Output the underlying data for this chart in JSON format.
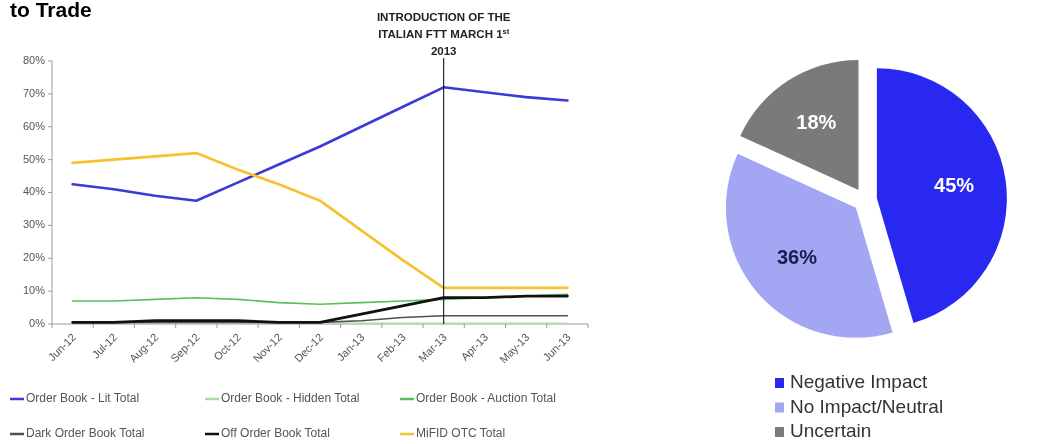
{
  "chart_data": [
    {
      "type": "line",
      "title": "to Trade",
      "categories": [
        "Jun-12",
        "Jul-12",
        "Aug-12",
        "Sep-12",
        "Oct-12",
        "Nov-12",
        "Dec-12",
        "Jan-13",
        "Feb-13",
        "Mar-13",
        "Apr-13",
        "May-13",
        "Jun-13"
      ],
      "ylim": [
        0,
        80
      ],
      "yticks": [
        {
          "value": 0,
          "label": "0%"
        },
        {
          "value": 10,
          "label": "10%"
        },
        {
          "value": 20,
          "label": "20%"
        },
        {
          "value": 30,
          "label": "30%"
        },
        {
          "value": 40,
          "label": "40%"
        },
        {
          "value": 50,
          "label": "50%"
        },
        {
          "value": 60,
          "label": "60%"
        },
        {
          "value": 70,
          "label": "70%"
        },
        {
          "value": 80,
          "label": "80%"
        }
      ],
      "series": [
        {
          "name": "Order Book - Lit Total",
          "color": "#3a3ad8",
          "values": [
            42.5,
            41,
            39,
            37.5,
            43,
            48.5,
            54,
            60,
            66,
            72,
            70.5,
            69,
            68
          ]
        },
        {
          "name": "Order Book - Hidden Total",
          "color": "#a8e0a0",
          "values": [
            0.3,
            0.3,
            0.3,
            0.3,
            0.3,
            0.3,
            0.3,
            0.3,
            0.3,
            0.3,
            0.3,
            0.3,
            0.3
          ]
        },
        {
          "name": "Order Book - Auction Total",
          "color": "#5cbf5c",
          "values": [
            7,
            7,
            7.5,
            8,
            7.5,
            6.5,
            6,
            6.5,
            7,
            7.5,
            8,
            8.5,
            9
          ]
        },
        {
          "name": "Dark Order Book Total",
          "color": "#505050",
          "values": [
            0.5,
            0.5,
            0.5,
            0.5,
            0.5,
            0.5,
            0.5,
            1,
            2,
            2.5,
            2.5,
            2.5,
            2.5
          ]
        },
        {
          "name": "Off Order Book Total",
          "color": "#111111",
          "values": [
            0.5,
            0.5,
            1,
            1,
            1,
            0.5,
            0.5,
            3,
            5.5,
            8,
            8,
            8.5,
            8.5
          ]
        },
        {
          "name": "MiFID OTC Total",
          "color": "#f5c231",
          "values": [
            49,
            50,
            51,
            52,
            47,
            42.5,
            37.5,
            28.5,
            19.5,
            11,
            11,
            11,
            11
          ]
        }
      ],
      "ref_lines": [
        {
          "axis": "x",
          "value": "Mar-13",
          "label": "INTRODUCTION OF THE ITALIAN FTT MARCH 1$^{st}$ 2013",
          "color": "#000000"
        }
      ],
      "legend": "bottom"
    },
    {
      "type": "pie",
      "categories": [
        "Negative Impact",
        "No Impact/Neutral",
        "Uncertain"
      ],
      "values": [
        45,
        36,
        18
      ],
      "colors": [
        "#2828f0",
        "#a3a6f2",
        "#7a7a7a"
      ],
      "value_labels": [
        "45%",
        "36%",
        "18%"
      ],
      "legend": "bottom"
    }
  ]
}
